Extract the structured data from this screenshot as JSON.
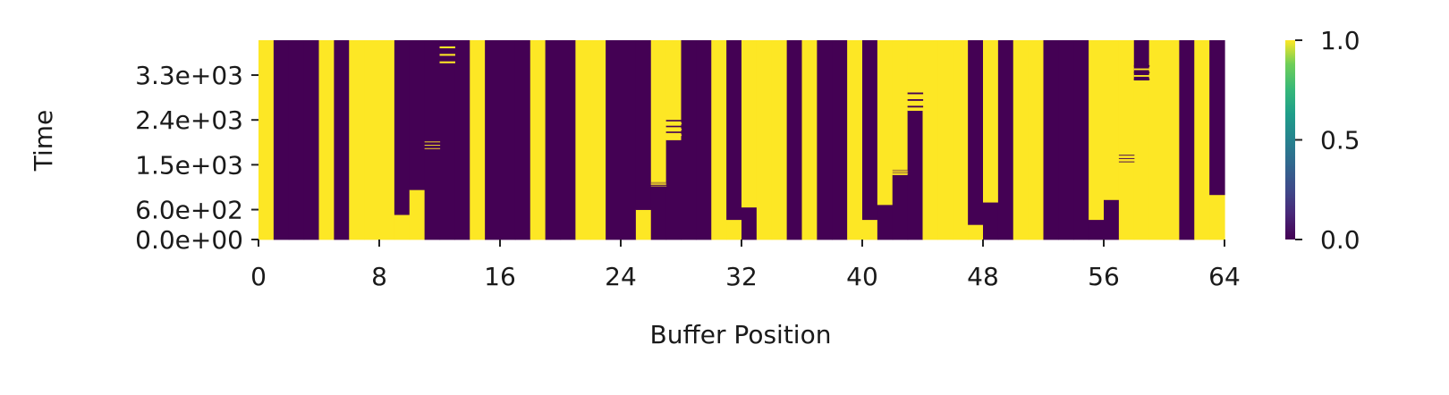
{
  "chart_data": {
    "type": "heatmap",
    "title": "",
    "xlabel": "Buffer Position",
    "ylabel": "Time",
    "n_positions": 64,
    "time_range": [
      0,
      4000
    ],
    "x_ticks": [
      0,
      8,
      16,
      24,
      32,
      40,
      48,
      56,
      64
    ],
    "x_tick_labels": [
      "0",
      "8",
      "16",
      "24",
      "32",
      "40",
      "48",
      "56",
      "64"
    ],
    "y_ticks": [
      0,
      600,
      1500,
      2400,
      3300
    ],
    "y_tick_labels": [
      "0.0e+00",
      "6.0e+02",
      "1.5e+03",
      "2.4e+03",
      "3.3e+03"
    ],
    "colorbar": {
      "colormap": "viridis",
      "range": [
        0,
        1
      ],
      "ticks": [
        0,
        0.5,
        1
      ],
      "tick_labels": [
        "0.0",
        "0.5",
        "1.0"
      ],
      "colors": {
        "low": "#440154",
        "mid": "#21918c",
        "high": "#fde725"
      }
    },
    "columns": [
      {
        "pos": 0,
        "segments": [
          [
            0,
            4000,
            1
          ]
        ]
      },
      {
        "pos": 1,
        "segments": [
          [
            0,
            4000,
            0
          ]
        ]
      },
      {
        "pos": 2,
        "segments": [
          [
            0,
            4000,
            0
          ]
        ]
      },
      {
        "pos": 3,
        "segments": [
          [
            0,
            4000,
            0
          ]
        ]
      },
      {
        "pos": 4,
        "segments": [
          [
            0,
            4000,
            1
          ]
        ]
      },
      {
        "pos": 5,
        "segments": [
          [
            0,
            4000,
            0
          ]
        ]
      },
      {
        "pos": 6,
        "segments": [
          [
            0,
            4000,
            1
          ]
        ]
      },
      {
        "pos": 7,
        "segments": [
          [
            0,
            4000,
            1
          ]
        ]
      },
      {
        "pos": 8,
        "segments": [
          [
            0,
            4000,
            1
          ]
        ]
      },
      {
        "pos": 9,
        "segments": [
          [
            0,
            500,
            1
          ],
          [
            500,
            4000,
            0
          ]
        ]
      },
      {
        "pos": 10,
        "segments": [
          [
            0,
            1000,
            1
          ],
          [
            1000,
            4000,
            0
          ]
        ]
      },
      {
        "pos": 11,
        "segments": [
          [
            0,
            4000,
            0
          ]
        ]
      },
      {
        "pos": 12,
        "segments": [
          [
            0,
            4000,
            0
          ]
        ]
      },
      {
        "pos": 13,
        "segments": [
          [
            0,
            4000,
            0
          ]
        ]
      },
      {
        "pos": 14,
        "segments": [
          [
            0,
            4000,
            1
          ]
        ]
      },
      {
        "pos": 15,
        "segments": [
          [
            0,
            4000,
            0
          ]
        ]
      },
      {
        "pos": 16,
        "segments": [
          [
            0,
            4000,
            0
          ]
        ]
      },
      {
        "pos": 17,
        "segments": [
          [
            0,
            4000,
            0
          ]
        ]
      },
      {
        "pos": 18,
        "segments": [
          [
            0,
            4000,
            1
          ]
        ]
      },
      {
        "pos": 19,
        "segments": [
          [
            0,
            4000,
            0
          ]
        ]
      },
      {
        "pos": 20,
        "segments": [
          [
            0,
            4000,
            0
          ]
        ]
      },
      {
        "pos": 21,
        "segments": [
          [
            0,
            4000,
            1
          ]
        ]
      },
      {
        "pos": 22,
        "segments": [
          [
            0,
            4000,
            1
          ]
        ]
      },
      {
        "pos": 23,
        "segments": [
          [
            0,
            4000,
            0
          ]
        ]
      },
      {
        "pos": 24,
        "segments": [
          [
            0,
            4000,
            0
          ]
        ]
      },
      {
        "pos": 25,
        "segments": [
          [
            0,
            600,
            1
          ],
          [
            600,
            4000,
            0
          ]
        ]
      },
      {
        "pos": 26,
        "segments": [
          [
            0,
            1100,
            0
          ],
          [
            1100,
            4000,
            1
          ]
        ]
      },
      {
        "pos": 27,
        "segments": [
          [
            0,
            2000,
            0
          ],
          [
            2000,
            4000,
            1
          ]
        ]
      },
      {
        "pos": 28,
        "segments": [
          [
            0,
            4000,
            0
          ]
        ]
      },
      {
        "pos": 29,
        "segments": [
          [
            0,
            4000,
            0
          ]
        ]
      },
      {
        "pos": 30,
        "segments": [
          [
            0,
            4000,
            1
          ]
        ]
      },
      {
        "pos": 31,
        "segments": [
          [
            0,
            400,
            1
          ],
          [
            400,
            4000,
            0
          ]
        ]
      },
      {
        "pos": 32,
        "segments": [
          [
            0,
            650,
            0
          ],
          [
            650,
            4000,
            1
          ]
        ]
      },
      {
        "pos": 33,
        "segments": [
          [
            0,
            4000,
            1
          ]
        ]
      },
      {
        "pos": 34,
        "segments": [
          [
            0,
            4000,
            1
          ]
        ]
      },
      {
        "pos": 35,
        "segments": [
          [
            0,
            4000,
            0
          ]
        ]
      },
      {
        "pos": 36,
        "segments": [
          [
            0,
            4000,
            1
          ]
        ]
      },
      {
        "pos": 37,
        "segments": [
          [
            0,
            4000,
            0
          ]
        ]
      },
      {
        "pos": 38,
        "segments": [
          [
            0,
            4000,
            0
          ]
        ]
      },
      {
        "pos": 39,
        "segments": [
          [
            0,
            4000,
            1
          ]
        ]
      },
      {
        "pos": 40,
        "segments": [
          [
            0,
            400,
            1
          ],
          [
            400,
            4000,
            0
          ]
        ]
      },
      {
        "pos": 41,
        "segments": [
          [
            0,
            700,
            0
          ],
          [
            700,
            4000,
            1
          ]
        ]
      },
      {
        "pos": 42,
        "segments": [
          [
            0,
            1300,
            0
          ],
          [
            1300,
            4000,
            1
          ]
        ]
      },
      {
        "pos": 43,
        "segments": [
          [
            0,
            2600,
            0
          ],
          [
            2600,
            4000,
            1
          ]
        ]
      },
      {
        "pos": 44,
        "segments": [
          [
            0,
            4000,
            1
          ]
        ]
      },
      {
        "pos": 45,
        "segments": [
          [
            0,
            4000,
            1
          ]
        ]
      },
      {
        "pos": 46,
        "segments": [
          [
            0,
            4000,
            1
          ]
        ]
      },
      {
        "pos": 47,
        "segments": [
          [
            0,
            300,
            1
          ],
          [
            300,
            4000,
            0
          ]
        ]
      },
      {
        "pos": 48,
        "segments": [
          [
            0,
            750,
            0
          ],
          [
            750,
            4000,
            1
          ]
        ]
      },
      {
        "pos": 49,
        "segments": [
          [
            0,
            4000,
            0
          ]
        ]
      },
      {
        "pos": 50,
        "segments": [
          [
            0,
            4000,
            1
          ]
        ]
      },
      {
        "pos": 51,
        "segments": [
          [
            0,
            4000,
            1
          ]
        ]
      },
      {
        "pos": 52,
        "segments": [
          [
            0,
            4000,
            0
          ]
        ]
      },
      {
        "pos": 53,
        "segments": [
          [
            0,
            4000,
            0
          ]
        ]
      },
      {
        "pos": 54,
        "segments": [
          [
            0,
            4000,
            0
          ]
        ]
      },
      {
        "pos": 55,
        "segments": [
          [
            0,
            400,
            0
          ],
          [
            400,
            4000,
            1
          ]
        ]
      },
      {
        "pos": 56,
        "segments": [
          [
            0,
            800,
            0
          ],
          [
            800,
            4000,
            1
          ]
        ]
      },
      {
        "pos": 57,
        "segments": [
          [
            0,
            4000,
            1
          ]
        ]
      },
      {
        "pos": 58,
        "segments": [
          [
            0,
            3200,
            1
          ],
          [
            3200,
            4000,
            0
          ]
        ]
      },
      {
        "pos": 59,
        "segments": [
          [
            0,
            4000,
            1
          ]
        ]
      },
      {
        "pos": 60,
        "segments": [
          [
            0,
            4000,
            1
          ]
        ]
      },
      {
        "pos": 61,
        "segments": [
          [
            0,
            4000,
            0
          ]
        ]
      },
      {
        "pos": 62,
        "segments": [
          [
            0,
            4000,
            1
          ]
        ]
      },
      {
        "pos": 63,
        "segments": [
          [
            0,
            900,
            1
          ],
          [
            900,
            4000,
            0
          ]
        ]
      }
    ],
    "flicker_bands": [
      {
        "pos": 12,
        "t_start": 3500,
        "t_end": 3950
      },
      {
        "pos": 11,
        "t_start": 1800,
        "t_end": 2000
      },
      {
        "pos": 27,
        "t_start": 2050,
        "t_end": 2400
      },
      {
        "pos": 26,
        "t_start": 1050,
        "t_end": 1150
      },
      {
        "pos": 43,
        "t_start": 2550,
        "t_end": 2950
      },
      {
        "pos": 42,
        "t_start": 1300,
        "t_end": 1400
      },
      {
        "pos": 57,
        "t_start": 1500,
        "t_end": 1700
      },
      {
        "pos": 58,
        "t_start": 3100,
        "t_end": 3500
      }
    ]
  }
}
